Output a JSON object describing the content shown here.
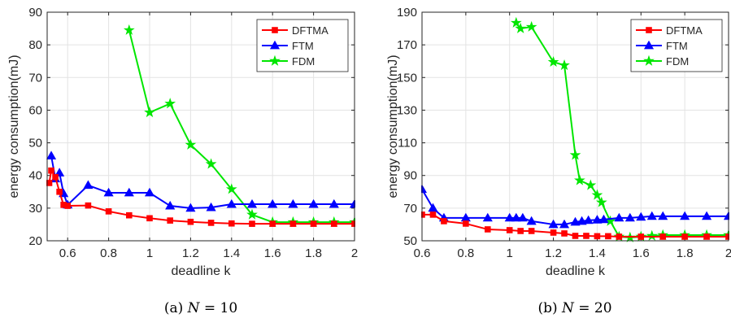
{
  "colors": {
    "DFTMA": "#ff0000",
    "FTM": "#0000ff",
    "FDM": "#00e600"
  },
  "chart_data": [
    {
      "type": "line",
      "caption_prefix": "(a) ",
      "caption_var": "N",
      "caption_rest": " = 10",
      "xlabel": "deadline k",
      "ylabel": "energy consumption(mJ)",
      "xlim": [
        0.5,
        2
      ],
      "ylim": [
        20,
        90
      ],
      "xticks": [
        0.6,
        0.8,
        1,
        1.2,
        1.4,
        1.6,
        1.8,
        2
      ],
      "xtick_labels": [
        "0.6",
        "0.8",
        "1",
        "1.2",
        "1.4",
        "1.6",
        "1.8",
        "2"
      ],
      "yticks": [
        20,
        30,
        40,
        50,
        60,
        70,
        80,
        90
      ],
      "ytick_labels": [
        "20",
        "30",
        "40",
        "50",
        "60",
        "70",
        "80",
        "90"
      ],
      "grid": true,
      "legend_position": "top-right",
      "series": [
        {
          "name": "DFTMA",
          "marker": "square",
          "x": [
            0.51,
            0.52,
            0.54,
            0.56,
            0.58,
            0.6,
            0.7,
            0.8,
            0.9,
            1.0,
            1.1,
            1.2,
            1.3,
            1.4,
            1.5,
            1.6,
            1.7,
            1.8,
            1.9,
            2.0
          ],
          "y": [
            37.7,
            41.5,
            39.5,
            35.0,
            31.0,
            30.7,
            30.8,
            29.0,
            27.8,
            26.9,
            26.2,
            25.8,
            25.5,
            25.3,
            25.2,
            25.2,
            25.2,
            25.2,
            25.2,
            25.2
          ]
        },
        {
          "name": "FTM",
          "marker": "triangle",
          "x": [
            0.52,
            0.54,
            0.56,
            0.58,
            0.6,
            0.7,
            0.8,
            0.9,
            1.0,
            1.1,
            1.2,
            1.3,
            1.4,
            1.5,
            1.6,
            1.7,
            1.8,
            1.9,
            2.0
          ],
          "y": [
            46.0,
            39.0,
            40.8,
            34.5,
            31.0,
            37.0,
            34.7,
            34.7,
            34.7,
            30.7,
            30.0,
            30.2,
            31.2,
            31.2,
            31.2,
            31.2,
            31.2,
            31.2,
            31.2
          ]
        },
        {
          "name": "FDM",
          "marker": "star",
          "x": [
            0.9,
            1.0,
            1.1,
            1.2,
            1.3,
            1.4,
            1.5,
            1.6,
            1.7,
            1.8,
            1.9,
            2.0
          ],
          "y": [
            84.5,
            59.3,
            62.0,
            49.4,
            43.5,
            35.8,
            28.0,
            25.7,
            25.7,
            25.7,
            25.7,
            25.7
          ]
        }
      ]
    },
    {
      "type": "line",
      "caption_prefix": "(b) ",
      "caption_var": "N",
      "caption_rest": " = 20",
      "xlabel": "deadline k",
      "ylabel": "energy consumption(mJ)",
      "xlim": [
        0.6,
        2
      ],
      "ylim": [
        50,
        190
      ],
      "xticks": [
        0.6,
        0.8,
        1,
        1.2,
        1.4,
        1.6,
        1.8,
        2
      ],
      "xtick_labels": [
        "0.6",
        "0.8",
        "1",
        "1.2",
        "1.4",
        "1.6",
        "1.8",
        "2"
      ],
      "yticks": [
        50,
        70,
        90,
        110,
        130,
        150,
        170,
        190
      ],
      "ytick_labels": [
        "50",
        "70",
        "90",
        "110",
        "130",
        "150",
        "170",
        "190"
      ],
      "grid": true,
      "legend_position": "top-right",
      "series": [
        {
          "name": "DFTMA",
          "marker": "square",
          "x": [
            0.6,
            0.65,
            0.7,
            0.8,
            0.9,
            1.0,
            1.05,
            1.1,
            1.2,
            1.25,
            1.3,
            1.35,
            1.4,
            1.45,
            1.5,
            1.6,
            1.7,
            1.8,
            1.9,
            2.0
          ],
          "y": [
            66.0,
            66.0,
            62.0,
            60.5,
            57.0,
            56.5,
            56.0,
            56.0,
            55.0,
            54.5,
            53.0,
            53.0,
            52.8,
            52.8,
            52.5,
            52.5,
            52.5,
            52.5,
            52.5,
            52.5
          ]
        },
        {
          "name": "FTM",
          "marker": "triangle",
          "x": [
            0.6,
            0.65,
            0.7,
            0.8,
            0.9,
            1.0,
            1.03,
            1.06,
            1.1,
            1.2,
            1.25,
            1.3,
            1.33,
            1.36,
            1.4,
            1.43,
            1.5,
            1.55,
            1.6,
            1.65,
            1.7,
            1.8,
            1.9,
            2.0
          ],
          "y": [
            81.5,
            70.0,
            64.0,
            64.0,
            64.0,
            64.0,
            64.0,
            64.0,
            62.0,
            60.0,
            60.0,
            61.5,
            62.0,
            62.5,
            62.8,
            63.0,
            64.0,
            64.0,
            64.5,
            65.0,
            65.0,
            65.0,
            65.0,
            65.0
          ]
        },
        {
          "name": "FDM",
          "marker": "star",
          "x": [
            1.03,
            1.05,
            1.1,
            1.2,
            1.25,
            1.3,
            1.32,
            1.37,
            1.4,
            1.42,
            1.46,
            1.5,
            1.55,
            1.6,
            1.65,
            1.7,
            1.8,
            1.9,
            2.0
          ],
          "y": [
            183.5,
            180.0,
            181.0,
            159.5,
            157.5,
            102.5,
            87.0,
            84.0,
            78.0,
            73.5,
            62.0,
            52.5,
            52.0,
            52.5,
            53.0,
            53.5,
            53.5,
            53.5,
            53.5
          ]
        }
      ]
    }
  ]
}
